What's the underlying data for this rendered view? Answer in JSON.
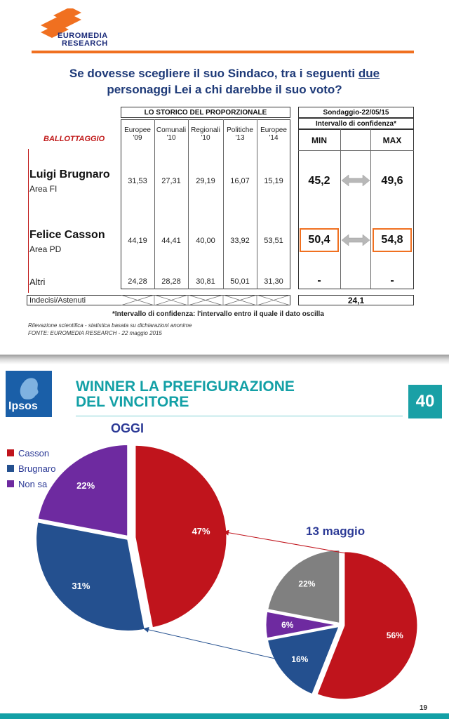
{
  "top": {
    "logo_line1": "EUROMEDIA",
    "logo_line2": "RESEARCH",
    "question_part1": "Se dovesse scegliere il suo Sindaco, tra i seguenti ",
    "question_underlined": "due",
    "question_part2": "personaggi Lei a chi darebbe il suo voto?",
    "storico_header": "LO STORICO DEL PROPORZIONALE",
    "sondaggio_header": "Sondaggio-22/05/15",
    "intervallo_header": "Intervallo di confidenza*",
    "ballottaggio": "BALLOTTAGGIO",
    "columns": [
      {
        "line1": "Europee",
        "line2": "'09"
      },
      {
        "line1": "Comunali",
        "line2": "'10"
      },
      {
        "line1": "Regionali",
        "line2": "'10"
      },
      {
        "line1": "Politiche",
        "line2": "'13"
      },
      {
        "line1": "Europee",
        "line2": "'14"
      }
    ],
    "min_label": "MIN",
    "max_label": "MAX",
    "rows": [
      {
        "name": "Luigi Brugnaro",
        "area": "Area FI",
        "values": [
          "31,53",
          "27,31",
          "29,19",
          "16,07",
          "15,19"
        ],
        "min": "45,2",
        "max": "49,6"
      },
      {
        "name": "Felice Casson",
        "area": "Area PD",
        "values": [
          "44,19",
          "44,41",
          "40,00",
          "33,92",
          "53,51"
        ],
        "min": "50,4",
        "max": "54,8"
      },
      {
        "name": "Altri",
        "area": "",
        "values": [
          "24,28",
          "28,28",
          "30,81",
          "50,01",
          "31,30"
        ],
        "min": "-",
        "max": "-"
      }
    ],
    "indecisi_label": "Indecisi/Astenuti",
    "indecisi_value": "24,1",
    "footnote": "*Intervallo di confidenza: l'intervallo entro il quale il dato oscilla",
    "note1": "Rilevazione scientifica - statistica basata su dichiarazioni anonime",
    "note2": "FONTE: EUROMEDIA RESEARCH - 22 maggio 2015"
  },
  "bottom": {
    "logo": "Ipsos",
    "title_line1": "WINNER LA PREFIGURAZIONE",
    "title_line2": "DEL VINCITORE",
    "badge": "40",
    "page_number": "19"
  },
  "colors": {
    "casson": "#c0141c",
    "brugnaro": "#24508f",
    "non_sa": "#6e2aa0",
    "other": "#808080",
    "orange": "#f07020",
    "teal": "#13a0a6"
  },
  "chart_data": [
    {
      "type": "pie",
      "title": "OGGI",
      "categories": [
        "Casson",
        "Brugnaro",
        "Non sa"
      ],
      "values": [
        47,
        31,
        22
      ],
      "labels": [
        "47%",
        "31%",
        "22%"
      ],
      "legend": "top-left"
    },
    {
      "type": "pie",
      "title": "13 maggio",
      "categories": [
        "Casson",
        "Brugnaro",
        "Non sa",
        ""
      ],
      "values": [
        56,
        16,
        6,
        22
      ],
      "labels": [
        "56%",
        "16%",
        "6%",
        "22%"
      ]
    }
  ]
}
